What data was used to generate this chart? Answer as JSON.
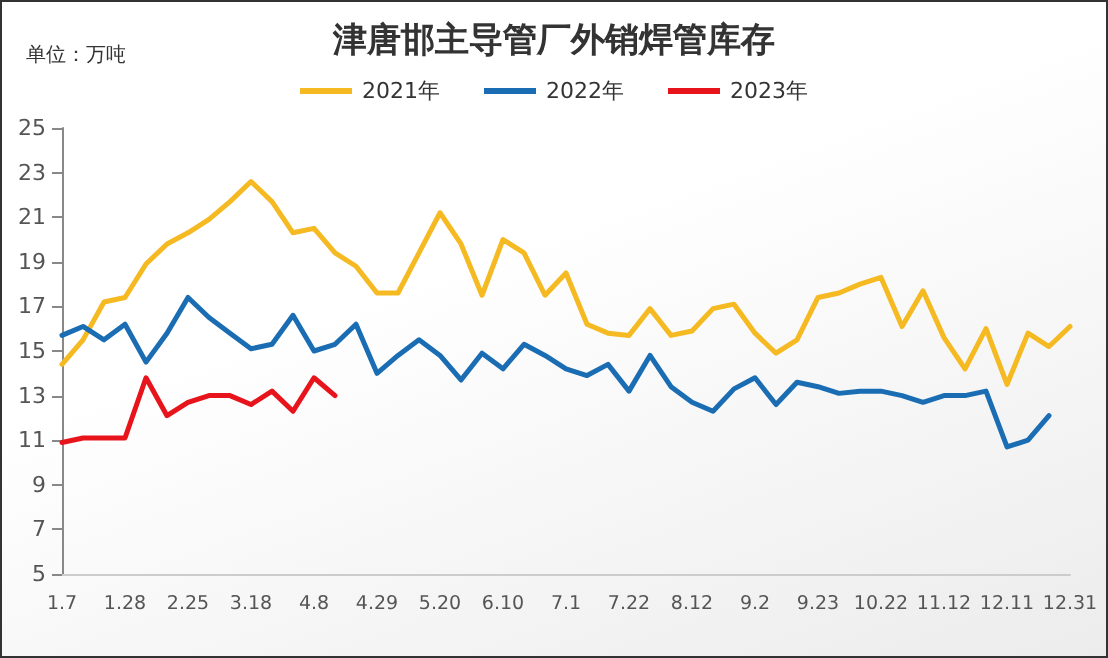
{
  "chart_data": {
    "type": "line",
    "title": "津唐邯主导管厂外销焊管库存",
    "annotations": [
      "单位：万吨"
    ],
    "categories": [
      "1.7",
      null,
      null,
      "1.28",
      null,
      null,
      "2.25",
      null,
      null,
      "3.18",
      null,
      null,
      "4.8",
      null,
      null,
      "4.29",
      null,
      null,
      "5.20",
      null,
      null,
      "6.10",
      null,
      null,
      "7.1",
      null,
      null,
      "7.22",
      null,
      null,
      "8.12",
      null,
      null,
      "9.2",
      null,
      null,
      "9.23",
      null,
      null,
      "10.22",
      null,
      null,
      "11.12",
      null,
      null,
      "12.11",
      null,
      null,
      "12.31"
    ],
    "series": [
      {
        "name": "2021年",
        "color": "#f5b921",
        "values": [
          14.4,
          15.5,
          17.2,
          17.4,
          18.9,
          19.8,
          20.3,
          20.9,
          21.7,
          22.6,
          21.7,
          20.3,
          20.5,
          19.4,
          18.8,
          17.6,
          17.6,
          19.4,
          21.2,
          19.8,
          17.5,
          20.0,
          19.4,
          17.5,
          18.5,
          16.2,
          15.8,
          15.7,
          16.9,
          15.7,
          15.9,
          16.9,
          17.1,
          15.8,
          14.9,
          15.5,
          17.4,
          17.6,
          18.0,
          18.3,
          16.1,
          17.7,
          15.6,
          14.2,
          16.0,
          13.5,
          15.8,
          15.2,
          16.1
        ]
      },
      {
        "name": "2022年",
        "color": "#1a6db3",
        "values": [
          15.7,
          16.1,
          15.5,
          16.2,
          14.5,
          15.8,
          17.4,
          16.5,
          15.8,
          15.1,
          15.3,
          16.6,
          15.0,
          15.3,
          16.2,
          14.0,
          14.8,
          15.5,
          14.8,
          13.7,
          14.9,
          14.2,
          15.3,
          14.8,
          14.2,
          13.9,
          14.4,
          13.2,
          14.8,
          13.4,
          12.7,
          12.3,
          13.3,
          13.8,
          12.6,
          13.6,
          13.4,
          13.1,
          13.2,
          13.2,
          13.0,
          12.7,
          13.0,
          13.0,
          13.2,
          10.7,
          11.0,
          12.1,
          null
        ]
      },
      {
        "name": "2023年",
        "color": "#e8141c",
        "values": [
          10.9,
          11.1,
          11.1,
          11.1,
          13.8,
          12.1,
          12.7,
          13.0,
          13.0,
          12.6,
          13.2,
          12.3,
          13.8,
          13.0,
          null,
          null,
          null,
          null,
          null,
          null,
          null,
          null,
          null,
          null,
          null,
          null,
          null,
          null,
          null,
          null,
          null,
          null,
          null,
          null,
          null,
          null,
          null,
          null,
          null,
          null,
          null,
          null,
          null,
          null,
          null,
          null,
          null,
          null,
          null
        ]
      }
    ],
    "ylim": [
      5,
      25
    ],
    "yticks": [
      5,
      7,
      9,
      11,
      13,
      15,
      17,
      19,
      21,
      23,
      25
    ],
    "grid": false,
    "legend": "top",
    "marker": "none",
    "line_style": "solid"
  }
}
